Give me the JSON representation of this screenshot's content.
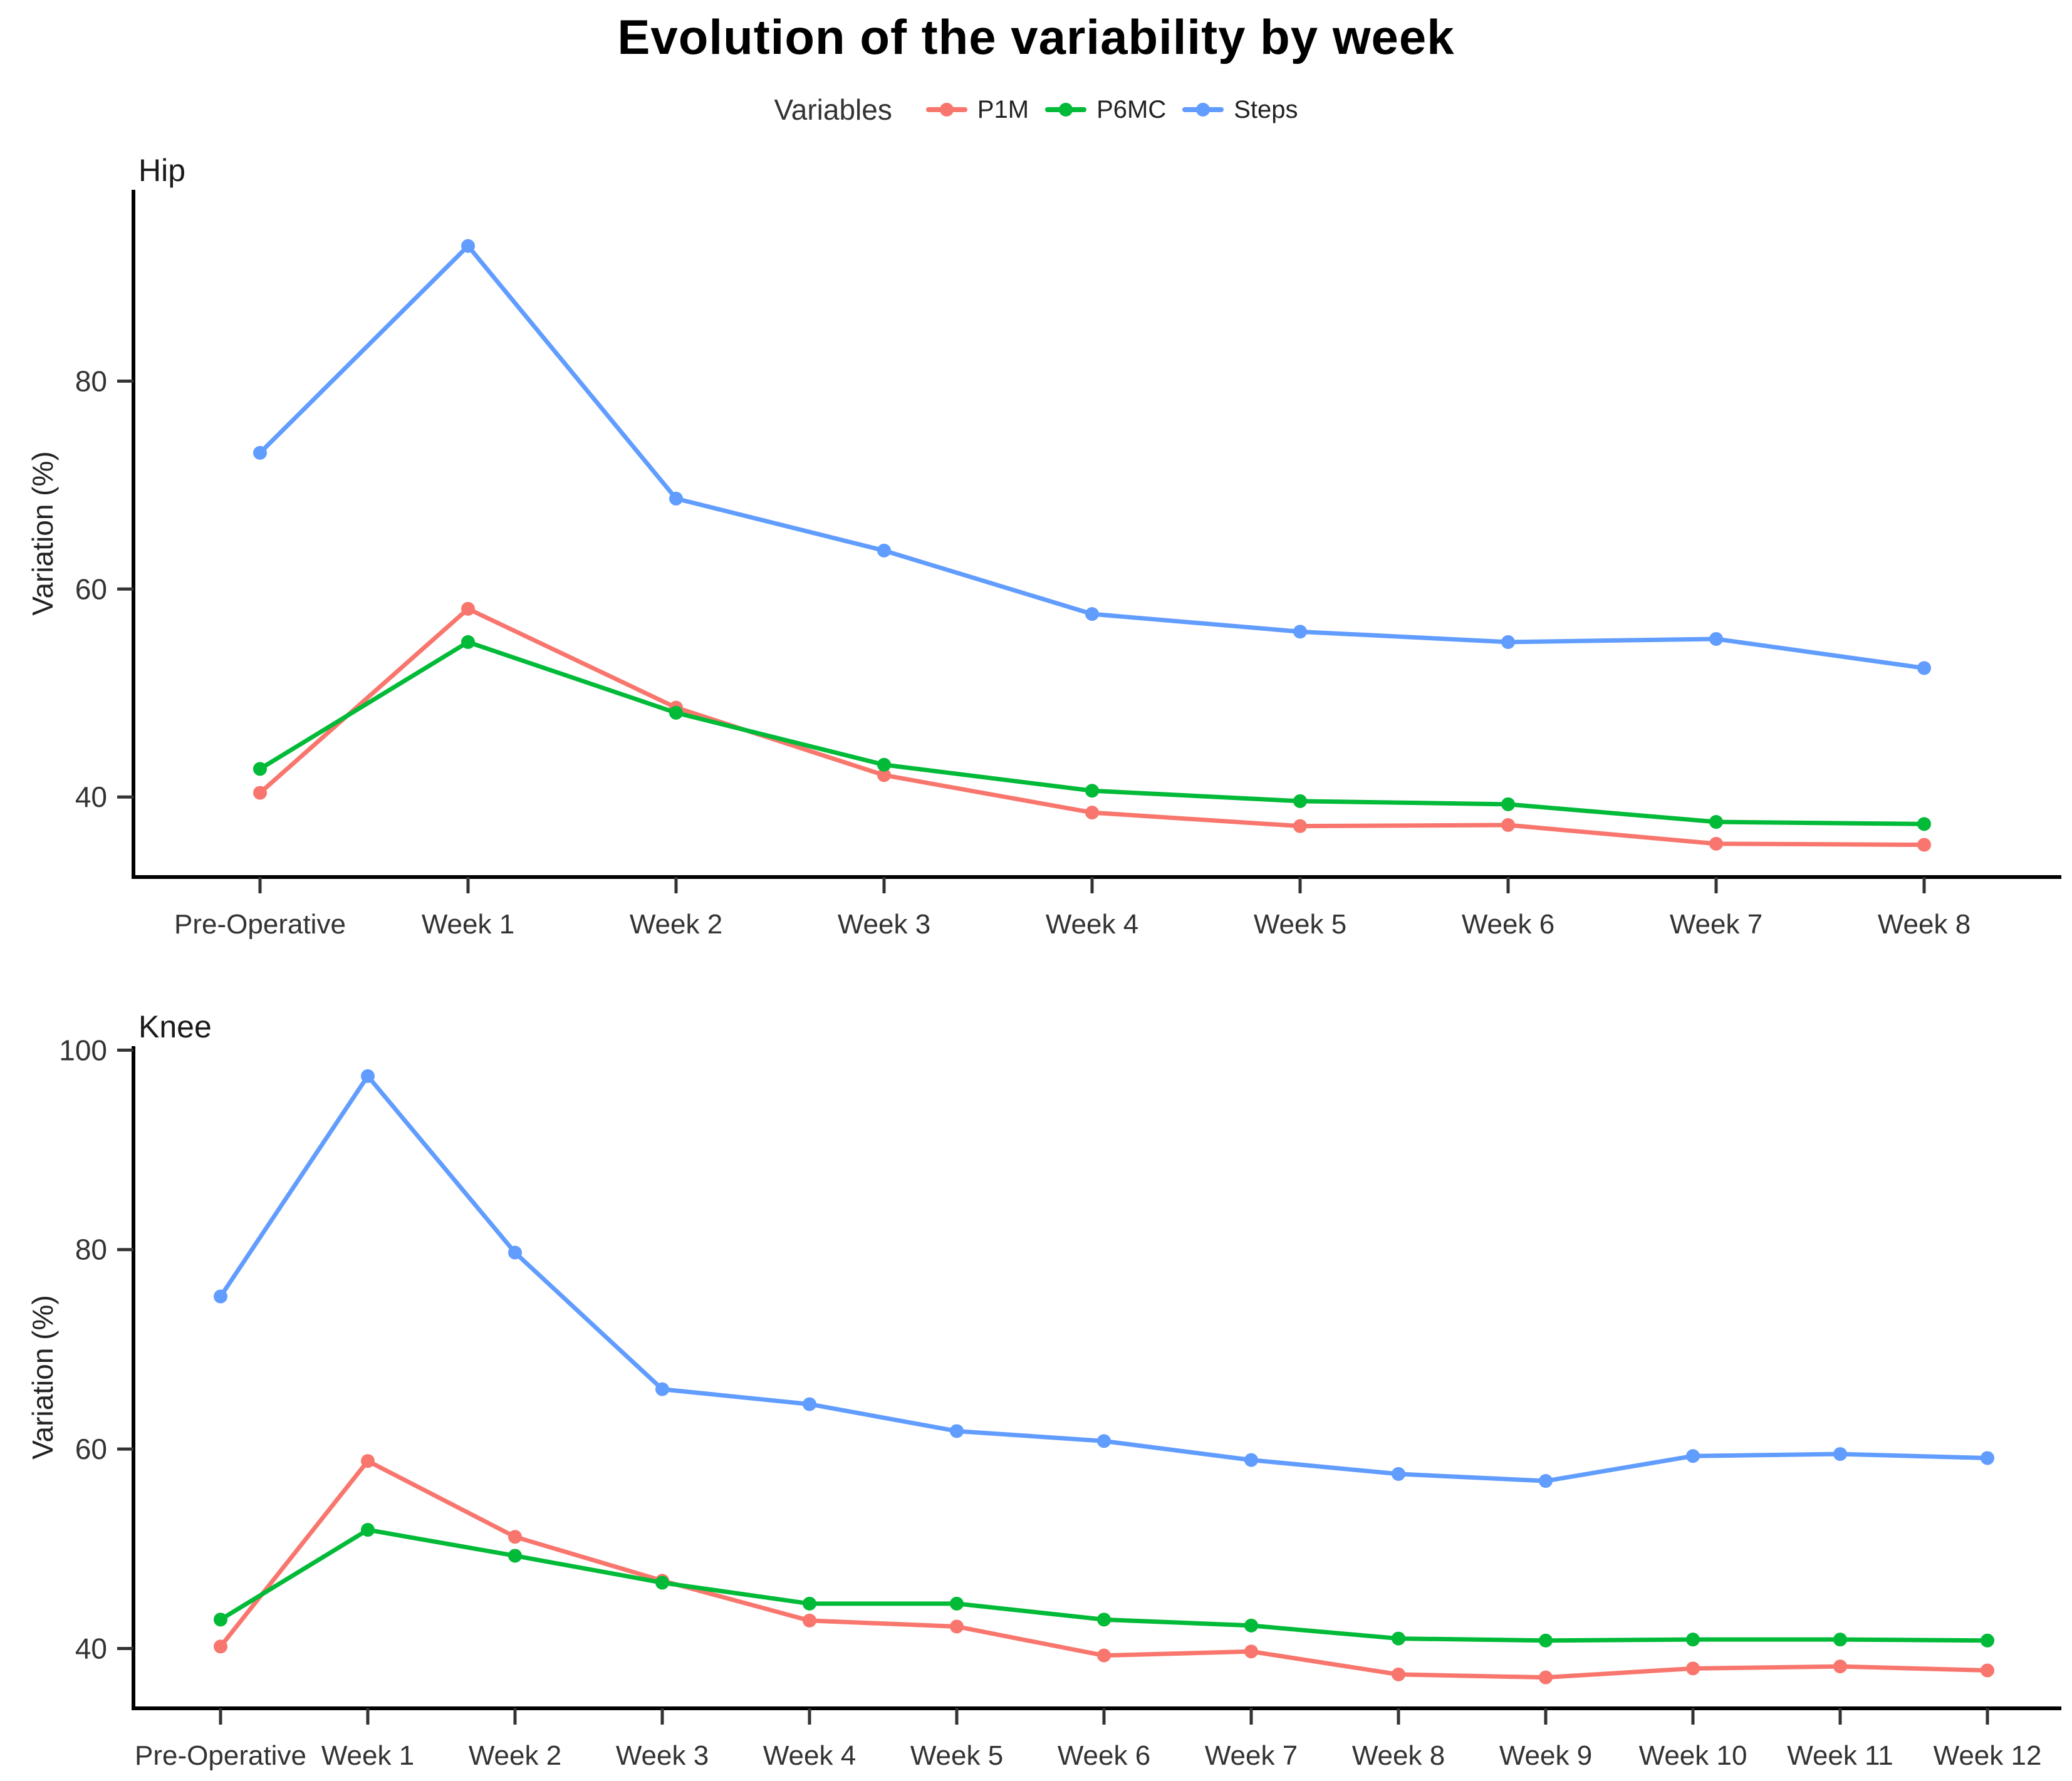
{
  "page": {
    "title": "Evolution of the variability by week"
  },
  "legend": {
    "label": "Variables",
    "items": [
      {
        "name": "P1M",
        "color": "#F8766D"
      },
      {
        "name": "P6MC",
        "color": "#00BA38"
      },
      {
        "name": "Steps",
        "color": "#619CFF"
      }
    ]
  },
  "colors": {
    "axis": "#000000",
    "tick_text": "#333333",
    "background": "#ffffff"
  },
  "chart_data": [
    {
      "id": "hip",
      "type": "line",
      "title": "Hip",
      "ylabel": "Variation (%)",
      "categories": [
        "Pre-Operative",
        "Week 1",
        "Week 2",
        "Week 3",
        "Week 4",
        "Week 5",
        "Week 6",
        "Week 7",
        "Week 8"
      ],
      "yticks": [
        40,
        60,
        80
      ],
      "ylim": [
        32.3,
        98.4
      ],
      "grid": false,
      "legend_position": "top",
      "series": [
        {
          "name": "P1M",
          "color": "#F8766D",
          "values": [
            40.4,
            58.1,
            48.6,
            42.1,
            38.5,
            37.2,
            37.3,
            35.5,
            35.4
          ]
        },
        {
          "name": "P6MC",
          "color": "#00BA38",
          "values": [
            42.7,
            54.9,
            48.1,
            43.1,
            40.6,
            39.6,
            39.3,
            37.6,
            37.4
          ]
        },
        {
          "name": "Steps",
          "color": "#619CFF",
          "values": [
            73.1,
            93.0,
            68.7,
            63.7,
            57.6,
            55.9,
            54.9,
            55.2,
            52.4
          ]
        }
      ]
    },
    {
      "id": "knee",
      "type": "line",
      "title": "Knee",
      "ylabel": "Variation (%)",
      "categories": [
        "Pre-Operative",
        "Week 1",
        "Week 2",
        "Week 3",
        "Week 4",
        "Week 5",
        "Week 6",
        "Week 7",
        "Week 8",
        "Week 9",
        "Week 10",
        "Week 11",
        "Week 12"
      ],
      "yticks": [
        40,
        60,
        80,
        100
      ],
      "ylim": [
        34.0,
        100.4
      ],
      "grid": false,
      "legend_position": "top",
      "series": [
        {
          "name": "P1M",
          "color": "#F8766D",
          "values": [
            40.2,
            58.8,
            51.2,
            46.8,
            42.8,
            42.2,
            39.3,
            39.7,
            37.4,
            37.1,
            38.0,
            38.2,
            37.8
          ]
        },
        {
          "name": "P6MC",
          "color": "#00BA38",
          "values": [
            42.9,
            51.9,
            49.3,
            46.6,
            44.5,
            44.5,
            42.9,
            42.3,
            41.0,
            40.8,
            40.9,
            40.9,
            40.8
          ]
        },
        {
          "name": "Steps",
          "color": "#619CFF",
          "values": [
            75.3,
            97.4,
            79.7,
            66.0,
            64.5,
            61.8,
            60.8,
            58.9,
            57.5,
            56.8,
            59.3,
            59.5,
            59.1
          ]
        }
      ]
    }
  ]
}
